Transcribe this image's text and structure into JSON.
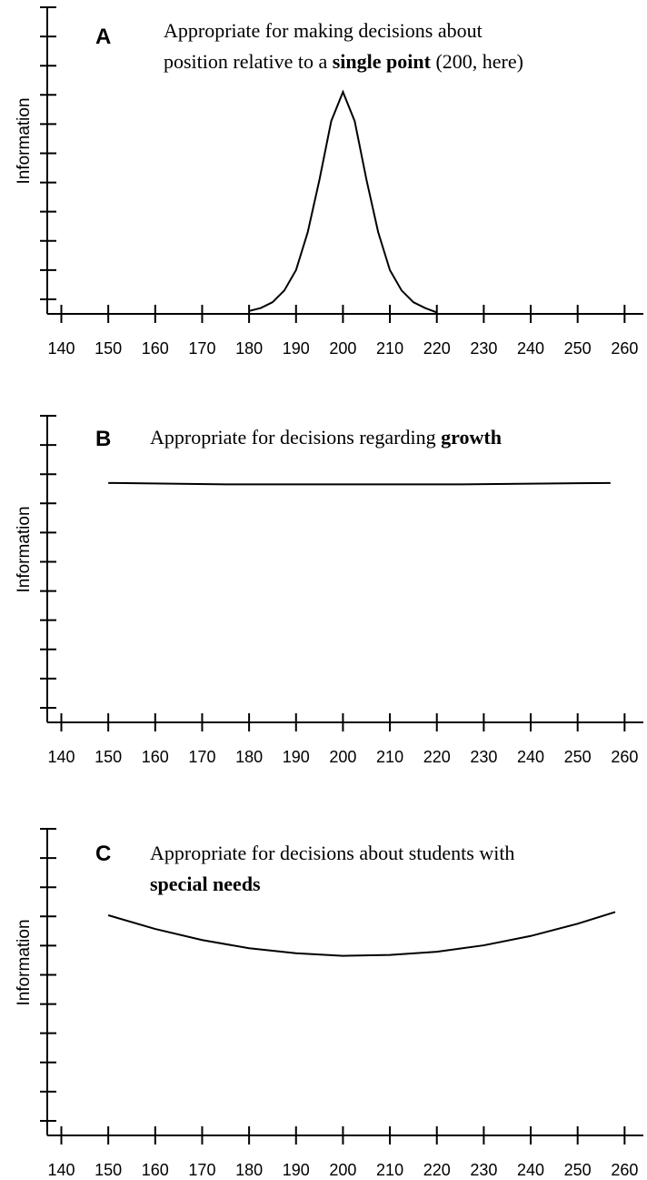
{
  "chart_data": [
    {
      "type": "line",
      "panel_label": "A",
      "title_lines": [
        [
          {
            "text": "Appropriate for making decisions about",
            "bold": false
          }
        ],
        [
          {
            "text": "position relative to a ",
            "bold": false
          },
          {
            "text": "single point",
            "bold": true
          },
          {
            "text": " (200, here)",
            "bold": false
          }
        ]
      ],
      "y_label": "Information",
      "x": [
        180,
        182.5,
        185,
        187.5,
        190,
        192.5,
        195,
        197.5,
        200,
        202.5,
        205,
        207.5,
        210,
        212.5,
        215,
        217.5,
        220
      ],
      "values": [
        0.1,
        0.2,
        0.4,
        0.8,
        1.5,
        2.8,
        4.6,
        6.6,
        7.6,
        6.6,
        4.6,
        2.8,
        1.5,
        0.8,
        0.4,
        0.2,
        0.05
      ],
      "color": "#000000",
      "xlim": [
        137,
        264
      ],
      "xticks": [
        140,
        150,
        160,
        170,
        180,
        190,
        200,
        210,
        220,
        230,
        240,
        250,
        260
      ],
      "ylim": [
        0,
        10.5
      ],
      "yticks": [
        0.5,
        1.5,
        2.5,
        3.5,
        4.5,
        5.5,
        6.5,
        7.5,
        8.5,
        9.5,
        10.5
      ]
    },
    {
      "type": "line",
      "panel_label": "B",
      "title_lines": [
        [
          {
            "text": "Appropriate for decisions regarding ",
            "bold": false
          },
          {
            "text": "growth",
            "bold": true
          }
        ]
      ],
      "y_label": "Information",
      "x": [
        150,
        175,
        200,
        225,
        257
      ],
      "values": [
        8.2,
        8.15,
        8.15,
        8.15,
        8.2
      ],
      "color": "#000000",
      "xlim": [
        137,
        264
      ],
      "xticks": [
        140,
        150,
        160,
        170,
        180,
        190,
        200,
        210,
        220,
        230,
        240,
        250,
        260
      ],
      "ylim": [
        0,
        10.5
      ],
      "yticks": [
        0.5,
        1.5,
        2.5,
        3.5,
        4.5,
        5.5,
        6.5,
        7.5,
        8.5,
        9.5,
        10.5
      ]
    },
    {
      "type": "line",
      "panel_label": "C",
      "title_lines": [
        [
          {
            "text": "Appropriate for decisions about students with",
            "bold": false
          }
        ],
        [
          {
            "text": "special needs",
            "bold": true
          }
        ]
      ],
      "y_label": "Information",
      "x": [
        150,
        160,
        170,
        180,
        190,
        200,
        210,
        220,
        230,
        240,
        250,
        258
      ],
      "values": [
        7.54,
        7.07,
        6.69,
        6.41,
        6.24,
        6.15,
        6.18,
        6.29,
        6.51,
        6.83,
        7.25,
        7.65
      ],
      "color": "#000000",
      "xlim": [
        137,
        264
      ],
      "xticks": [
        140,
        150,
        160,
        170,
        180,
        190,
        200,
        210,
        220,
        230,
        240,
        250,
        260
      ],
      "ylim": [
        0,
        10.5
      ],
      "yticks": [
        0.5,
        1.5,
        2.5,
        3.5,
        4.5,
        5.5,
        6.5,
        7.5,
        8.5,
        9.5,
        10.5
      ]
    }
  ]
}
